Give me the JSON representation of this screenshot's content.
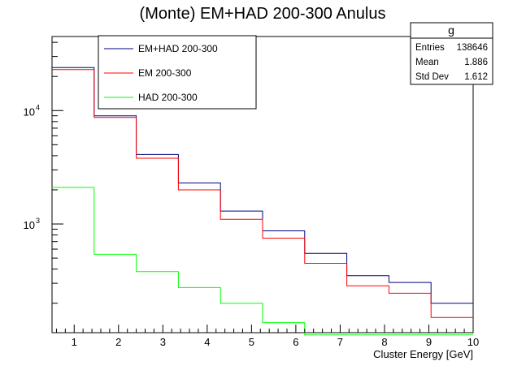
{
  "chart_data": {
    "type": "histogram",
    "title": "(Monte) EM+HAD 200-300 Anulus",
    "xlabel": "Cluster Energy [GeV]",
    "ylabel": "",
    "xlim": [
      0.5,
      10
    ],
    "ylim": [
      110,
      45000
    ],
    "yscale": "log",
    "bin_edges": [
      0.5,
      1.45,
      2.4,
      3.35,
      4.3,
      5.25,
      6.2,
      7.15,
      8.1,
      9.05,
      10.0
    ],
    "x_ticks": [
      1,
      2,
      3,
      4,
      5,
      6,
      7,
      8,
      9,
      10
    ],
    "x_tick_labels": [
      "1",
      "2",
      "3",
      "4",
      "5",
      "6",
      "7",
      "8",
      "9",
      "10"
    ],
    "y_major_ticks": [
      {
        "value": 1000,
        "base": "10",
        "exp": "3"
      },
      {
        "value": 10000,
        "base": "10",
        "exp": "4"
      }
    ],
    "series": [
      {
        "name": "EM+HAD 200-300",
        "color": "#000080",
        "values": [
          24000,
          9000,
          4100,
          2300,
          1300,
          870,
          550,
          350,
          305,
          200
        ]
      },
      {
        "name": "EM 200-300",
        "color": "#ff0000",
        "values": [
          23000,
          8700,
          3800,
          2000,
          1100,
          750,
          450,
          285,
          245,
          150
        ]
      },
      {
        "name": "HAD 200-300",
        "color": "#00ff00",
        "values": [
          2100,
          540,
          380,
          275,
          200,
          135,
          105,
          105,
          105,
          105
        ]
      }
    ],
    "legend_position": "top-left"
  },
  "stats_box": {
    "title": "g",
    "rows": [
      {
        "label": "Entries",
        "value": "138646"
      },
      {
        "label": "Mean",
        "value": "1.886"
      },
      {
        "label": "Std Dev",
        "value": "1.612"
      }
    ]
  }
}
